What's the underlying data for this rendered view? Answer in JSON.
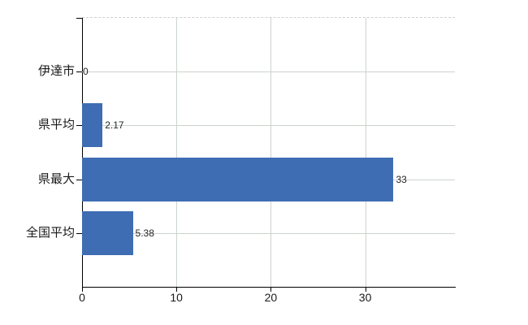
{
  "chart_data": {
    "type": "bar",
    "orientation": "horizontal",
    "title": "",
    "xlabel": "",
    "ylabel": "",
    "categories": [
      "伊達市",
      "県平均",
      "県最大",
      "全国平均"
    ],
    "values": [
      0,
      2.17,
      33,
      5.38
    ],
    "value_labels": [
      "0",
      "2.17",
      "33",
      "5.38"
    ],
    "xticks": [
      0,
      10,
      20,
      30
    ],
    "xtick_labels": [
      "0",
      "10",
      "20",
      "30"
    ],
    "xlim": [
      0,
      39.5
    ],
    "grid": true,
    "legend": false,
    "colors": {
      "bar": "#3e6db3",
      "gridline": "#ccd3cc",
      "top_border_dashed": "#d6cfd6",
      "axis": "#000000",
      "text": "#1a1a1a",
      "value_text": "#262626",
      "background": "#ffffff"
    }
  }
}
